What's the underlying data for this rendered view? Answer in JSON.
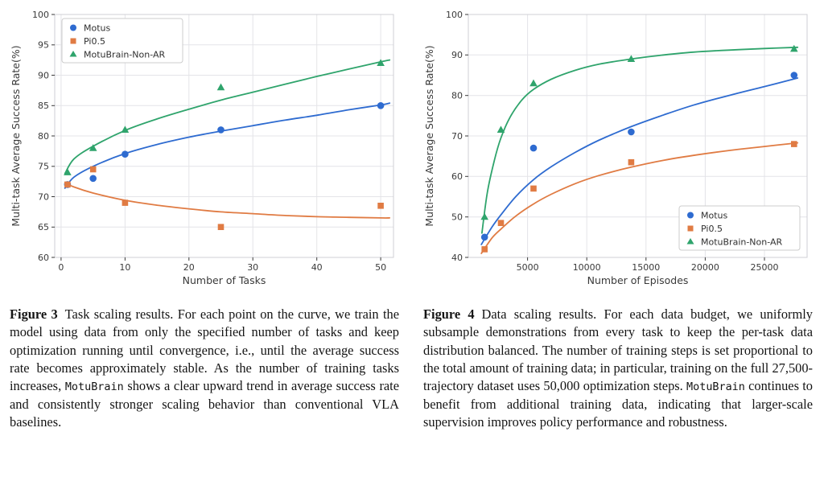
{
  "figures": [
    {
      "caption": {
        "label": "Figure 3",
        "before": "Task scaling results. For each point on the curve, we train the model using data from only the specified number of tasks and keep optimization running until convergence, i.e., until the average success rate becomes approximately stable. As the number of training tasks increases, ",
        "mono": "MotuBrain",
        "after": " shows a clear upward trend in average success rate and consistently stronger scaling behavior than conventional VLA baselines."
      }
    },
    {
      "caption": {
        "label": "Figure 4",
        "before": "Data scaling results. For each data budget, we uniformly subsample demonstrations from every task to keep the per-task data distribution balanced. The number of training steps is set proportional to the total amount of training data; in particular, training on the full 27,500-trajectory dataset uses 50,000 optimization steps. ",
        "mono": "MotuBrain",
        "after": " continues to benefit from additional training data, indicating that larger-scale supervision improves policy performance and robustness."
      }
    }
  ],
  "chart_data": [
    {
      "type": "scatter",
      "title": "",
      "xlabel": "Number of Tasks",
      "ylabel": "Multi-task Average Success Rate(%)",
      "xlim": [
        -1,
        52
      ],
      "ylim": [
        60,
        100
      ],
      "xticks": [
        0,
        10,
        20,
        30,
        40,
        50
      ],
      "yticks": [
        60,
        65,
        70,
        75,
        80,
        85,
        90,
        95,
        100
      ],
      "grid": true,
      "legend": {
        "position": "top-left"
      },
      "series": [
        {
          "name": "Motus",
          "color": "#2e6bd0",
          "marker": "circle",
          "points": [
            [
              1,
              72
            ],
            [
              5,
              73
            ],
            [
              10,
              77
            ],
            [
              25,
              81
            ],
            [
              50,
              85
            ]
          ],
          "trend": [
            [
              0.6,
              71.4
            ],
            [
              2,
              73.2
            ],
            [
              5,
              75.0
            ],
            [
              10,
              77.1
            ],
            [
              15,
              78.6
            ],
            [
              20,
              79.8
            ],
            [
              25,
              80.8
            ],
            [
              30,
              81.7
            ],
            [
              35,
              82.6
            ],
            [
              40,
              83.4
            ],
            [
              45,
              84.3
            ],
            [
              50,
              85.1
            ],
            [
              51.4,
              85.4
            ]
          ]
        },
        {
          "name": "Pi0.5",
          "color": "#e07b43",
          "marker": "square",
          "points": [
            [
              1,
              72
            ],
            [
              5,
              74.5
            ],
            [
              10,
              69
            ],
            [
              25,
              65
            ],
            [
              50,
              68.5
            ]
          ],
          "trend": [
            [
              0.6,
              72.3
            ],
            [
              2,
              71.6
            ],
            [
              5,
              70.6
            ],
            [
              10,
              69.4
            ],
            [
              15,
              68.6
            ],
            [
              20,
              68.0
            ],
            [
              25,
              67.5
            ],
            [
              30,
              67.2
            ],
            [
              35,
              66.9
            ],
            [
              40,
              66.7
            ],
            [
              45,
              66.6
            ],
            [
              50,
              66.5
            ],
            [
              51.4,
              66.5
            ]
          ]
        },
        {
          "name": "MotuBrain-Non-AR",
          "color": "#2fa46c",
          "marker": "triangle",
          "points": [
            [
              1,
              74
            ],
            [
              5,
              78
            ],
            [
              10,
              81
            ],
            [
              25,
              88
            ],
            [
              50,
              92
            ]
          ],
          "trend": [
            [
              0.6,
              73.8
            ],
            [
              2,
              76.2
            ],
            [
              5,
              78.3
            ],
            [
              10,
              80.9
            ],
            [
              15,
              82.8
            ],
            [
              20,
              84.4
            ],
            [
              25,
              85.9
            ],
            [
              30,
              87.2
            ],
            [
              35,
              88.5
            ],
            [
              40,
              89.8
            ],
            [
              45,
              91.0
            ],
            [
              50,
              92.2
            ],
            [
              51.4,
              92.5
            ]
          ]
        }
      ]
    },
    {
      "type": "scatter",
      "title": "",
      "xlabel": "Number of Episodes",
      "ylabel": "Multi-task Average Success Rate(%)",
      "xlim": [
        0,
        28600
      ],
      "ylim": [
        40,
        100
      ],
      "xticks": [
        5000,
        10000,
        15000,
        20000,
        25000
      ],
      "yticks": [
        40,
        50,
        60,
        70,
        80,
        90,
        100
      ],
      "grid": true,
      "legend": {
        "position": "bottom-right"
      },
      "series": [
        {
          "name": "Motus",
          "color": "#2e6bd0",
          "marker": "circle",
          "points": [
            [
              1375,
              45
            ],
            [
              5500,
              67
            ],
            [
              13750,
              71
            ],
            [
              27500,
              85
            ]
          ],
          "trend": [
            [
              1100,
              43.2
            ],
            [
              2000,
              47.5
            ],
            [
              2750,
              50.5
            ],
            [
              4000,
              55.0
            ],
            [
              5500,
              59.2
            ],
            [
              7000,
              62.4
            ],
            [
              9000,
              65.9
            ],
            [
              11000,
              68.9
            ],
            [
              13750,
              72.3
            ],
            [
              16500,
              75.2
            ],
            [
              19000,
              77.6
            ],
            [
              22000,
              80.0
            ],
            [
              25000,
              82.2
            ],
            [
              27800,
              84.3
            ]
          ]
        },
        {
          "name": "Pi0.5",
          "color": "#e07b43",
          "marker": "square",
          "points": [
            [
              1375,
              42
            ],
            [
              2750,
              48.5
            ],
            [
              5500,
              57
            ],
            [
              13750,
              63.5
            ],
            [
              27500,
              68
            ]
          ],
          "trend": [
            [
              1100,
              41.0
            ],
            [
              2000,
              44.8
            ],
            [
              2750,
              47.0
            ],
            [
              4000,
              50.2
            ],
            [
              5500,
              53.2
            ],
            [
              7000,
              55.6
            ],
            [
              9000,
              58.2
            ],
            [
              11000,
              60.2
            ],
            [
              13750,
              62.3
            ],
            [
              16500,
              64.0
            ],
            [
              19000,
              65.2
            ],
            [
              22000,
              66.4
            ],
            [
              25000,
              67.4
            ],
            [
              27800,
              68.3
            ]
          ]
        },
        {
          "name": "MotuBrain-Non-AR",
          "color": "#2fa46c",
          "marker": "triangle",
          "points": [
            [
              1375,
              50
            ],
            [
              2750,
              71.5
            ],
            [
              5500,
              83
            ],
            [
              13750,
              89
            ],
            [
              27500,
              91.5
            ]
          ],
          "trend": [
            [
              1150,
              46.0
            ],
            [
              1600,
              56.0
            ],
            [
              2200,
              64.0
            ],
            [
              2750,
              69.5
            ],
            [
              3500,
              74.5
            ],
            [
              4500,
              78.8
            ],
            [
              5500,
              81.5
            ],
            [
              7000,
              84.0
            ],
            [
              9000,
              86.2
            ],
            [
              11000,
              87.7
            ],
            [
              13750,
              89.0
            ],
            [
              16500,
              90.0
            ],
            [
              19000,
              90.7
            ],
            [
              22000,
              91.2
            ],
            [
              25000,
              91.6
            ],
            [
              27800,
              91.9
            ]
          ]
        }
      ]
    }
  ]
}
